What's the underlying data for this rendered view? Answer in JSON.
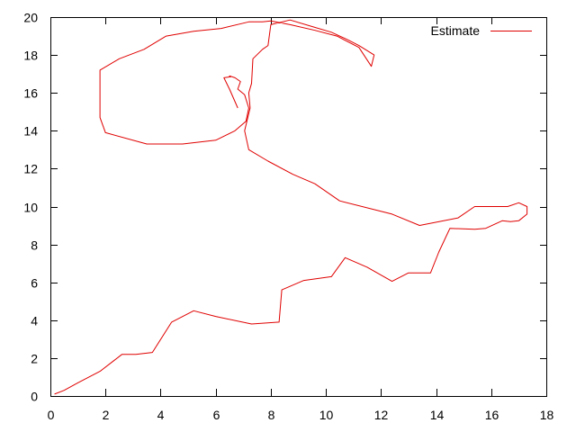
{
  "chart_data": {
    "type": "line",
    "title": "",
    "xlabel": "",
    "ylabel": "",
    "xlim": [
      0,
      18
    ],
    "ylim": [
      0,
      20
    ],
    "x_ticks": [
      0,
      2,
      4,
      6,
      8,
      10,
      12,
      14,
      16,
      18
    ],
    "y_ticks": [
      0,
      2,
      4,
      6,
      8,
      10,
      12,
      14,
      16,
      18,
      20
    ],
    "grid": false,
    "legend": {
      "position": "top-right"
    },
    "series": [
      {
        "name": "Estimate",
        "color": "#e00000",
        "x": [
          0.15,
          0.5,
          1.0,
          1.8,
          2.6,
          3.1,
          3.7,
          4.4,
          5.2,
          6.0,
          7.3,
          8.3,
          8.4,
          9.2,
          10.2,
          10.7,
          11.5,
          12.4,
          13.0,
          13.8,
          14.1,
          14.5,
          15.4,
          15.8,
          16.4,
          16.7,
          17.0,
          17.3,
          17.3,
          17.0,
          16.6,
          16.2,
          15.4,
          14.8,
          13.4,
          12.4,
          10.5,
          9.6,
          8.8,
          7.9,
          7.2,
          7.05,
          7.25,
          7.2,
          7.3,
          7.35,
          7.7,
          7.9,
          8.0,
          8.7,
          9.5,
          10.2,
          10.8,
          11.2,
          11.75,
          11.65,
          11.2,
          10.4,
          9.6,
          8.7,
          8.0,
          7.7,
          7.2,
          6.2,
          5.2,
          4.2,
          3.4,
          2.5,
          1.8,
          1.8,
          1.8,
          2.0,
          3.5,
          4.8,
          6.0,
          6.7,
          7.1,
          7.2,
          7.05,
          6.8,
          6.9,
          6.7,
          6.5,
          6.55,
          6.3,
          6.5,
          6.8
        ],
        "y": [
          0.1,
          0.3,
          0.7,
          1.3,
          2.2,
          2.2,
          2.3,
          3.9,
          4.5,
          4.2,
          3.8,
          3.9,
          5.6,
          6.1,
          6.3,
          7.3,
          6.8,
          6.05,
          6.5,
          6.5,
          7.6,
          8.85,
          8.8,
          8.85,
          9.25,
          9.2,
          9.25,
          9.6,
          10.0,
          10.2,
          10.0,
          10.0,
          10.0,
          9.4,
          9.0,
          9.6,
          10.3,
          11.2,
          11.7,
          12.4,
          13.0,
          14.0,
          15.2,
          16.0,
          16.5,
          17.8,
          18.3,
          18.5,
          19.6,
          19.85,
          19.5,
          19.2,
          18.8,
          18.5,
          18.0,
          17.4,
          18.4,
          19.0,
          19.3,
          19.6,
          19.8,
          19.75,
          19.75,
          19.4,
          19.25,
          19.0,
          18.3,
          17.8,
          17.2,
          17.0,
          14.7,
          13.9,
          13.3,
          13.3,
          13.5,
          14.0,
          14.5,
          15.2,
          15.9,
          16.2,
          16.6,
          16.8,
          16.9,
          16.85,
          16.8,
          16.2,
          15.2
        ]
      }
    ]
  }
}
